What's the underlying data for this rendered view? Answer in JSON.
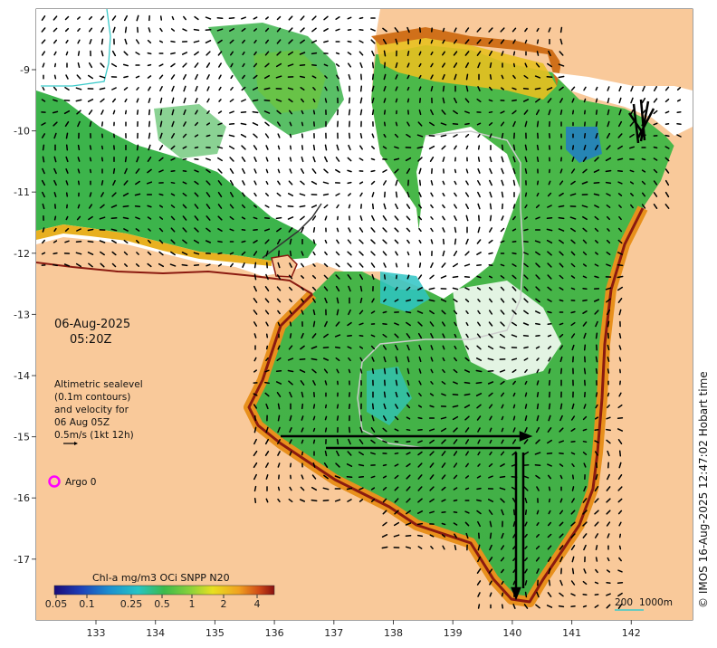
{
  "map": {
    "date": "06-Aug-2025",
    "time": "05:20Z",
    "altimetry_note": [
      "Altimetric sealevel",
      "(0.1m contours)",
      "and velocity for",
      "06 Aug 05Z",
      "0.5m/s (1kt 12h)"
    ],
    "argo_label": "Argo 0",
    "credit": "© IMOS 16-Aug-2025 12:47:02 Hobart time",
    "colorbar": {
      "title": "Chl-a mg/m3 OCi SNPP N20",
      "ticks": [
        "0.05",
        "0.1",
        "0.25",
        "0.5",
        "1",
        "2",
        "4"
      ]
    },
    "scale_bar": {
      "label_200": "200",
      "label_1000": "1000m"
    },
    "lon_ticks": [
      "133",
      "134",
      "135",
      "136",
      "137",
      "138",
      "139",
      "140",
      "141",
      "142"
    ],
    "lat_ticks": [
      "-9",
      "-10",
      "-11",
      "-12",
      "-13",
      "-14",
      "-15",
      "-16",
      "-17"
    ],
    "colors": {
      "land": "#f9c99a",
      "cloud": "#ffffff",
      "chl_low": "#1aa0c8",
      "chl_mid": "#3cb44b",
      "chl_high": "#e8a020",
      "coast_high": "#b8301a",
      "argo": "#ff00ff"
    }
  }
}
